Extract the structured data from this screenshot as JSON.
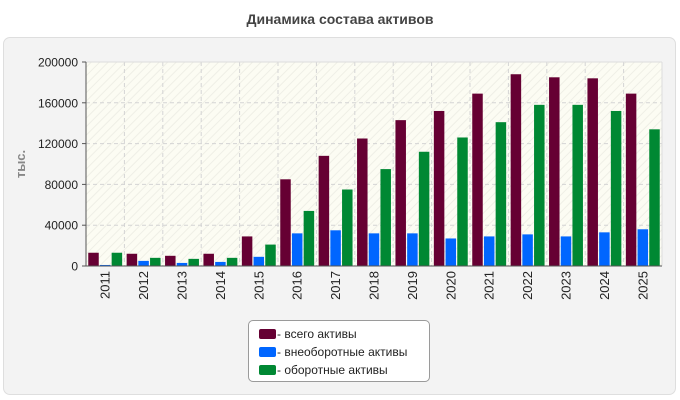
{
  "chart_data": {
    "type": "bar",
    "title": "Динамика состава активов",
    "ylabel": "тыс.",
    "xlabel": "",
    "ylim": [
      0,
      200000
    ],
    "y_ticks": [
      "0",
      "40000",
      "80000",
      "120000",
      "160000",
      "200000"
    ],
    "grid": true,
    "legend_position": "bottom",
    "categories": [
      "2011",
      "2012",
      "2013",
      "2014",
      "2015",
      "2016",
      "2017",
      "2018",
      "2019",
      "2020",
      "2021",
      "2022",
      "2023",
      "2024",
      "2025"
    ],
    "series": [
      {
        "name": "- всего активы",
        "color": "#660033",
        "values": [
          13000,
          12000,
          10000,
          12000,
          29000,
          85000,
          108000,
          125000,
          143000,
          152000,
          169000,
          188000,
          185000,
          184000,
          169000
        ]
      },
      {
        "name": "- внеоборотные активы",
        "color": "#0066ff",
        "values": [
          1000,
          5000,
          3000,
          4000,
          9000,
          32000,
          35000,
          32000,
          32000,
          27000,
          29000,
          31000,
          29000,
          33000,
          36000
        ]
      },
      {
        "name": "- оборотные активы",
        "color": "#008833",
        "values": [
          13000,
          8000,
          7000,
          8000,
          21000,
          54000,
          75000,
          95000,
          112000,
          126000,
          141000,
          158000,
          158000,
          152000,
          134000
        ]
      }
    ]
  }
}
